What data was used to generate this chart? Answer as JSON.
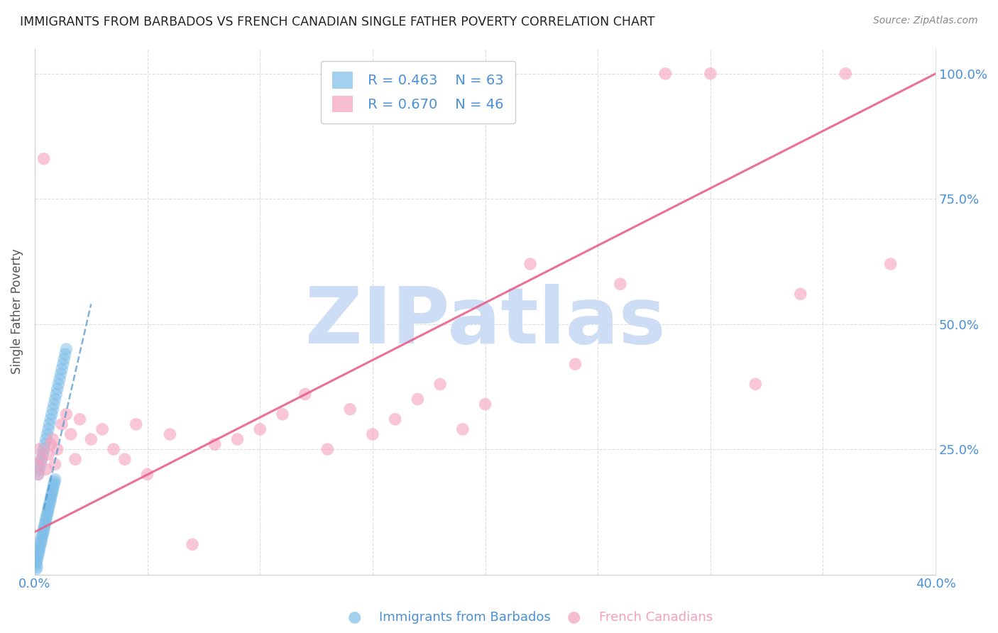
{
  "title": "IMMIGRANTS FROM BARBADOS VS FRENCH CANADIAN SINGLE FATHER POVERTY CORRELATION CHART",
  "source": "Source: ZipAtlas.com",
  "xlabel_label": "Immigrants from Barbados",
  "ylabel_label": "Single Father Poverty",
  "xlabel2_label": "French Canadians",
  "x_min": 0.0,
  "x_max": 0.4,
  "y_min": 0.0,
  "y_max": 1.05,
  "blue_color": "#7bbde8",
  "pink_color": "#f4a0bc",
  "blue_line_color": "#5599cc",
  "pink_line_color": "#e8608a",
  "legend_R1": "R = 0.463",
  "legend_N1": "N = 63",
  "legend_R2": "R = 0.670",
  "legend_N2": "N = 46",
  "watermark": "ZIPatlas",
  "watermark_color": "#ccddf5",
  "title_color": "#222222",
  "tick_color": "#4a90d9",
  "grid_color": "#dddddd",
  "blue_dots_x": [
    0.0005,
    0.0008,
    0.001,
    0.0012,
    0.0015,
    0.0018,
    0.002,
    0.0022,
    0.0025,
    0.0028,
    0.003,
    0.0032,
    0.0035,
    0.0038,
    0.004,
    0.0042,
    0.0045,
    0.0048,
    0.005,
    0.0052,
    0.0055,
    0.0058,
    0.006,
    0.0062,
    0.0065,
    0.0068,
    0.007,
    0.0072,
    0.0075,
    0.0078,
    0.008,
    0.0082,
    0.0085,
    0.0088,
    0.009,
    0.0005,
    0.001,
    0.0015,
    0.002,
    0.0025,
    0.003,
    0.0035,
    0.004,
    0.0045,
    0.005,
    0.0055,
    0.006,
    0.0065,
    0.007,
    0.0075,
    0.008,
    0.0085,
    0.009,
    0.0095,
    0.01,
    0.0105,
    0.011,
    0.0115,
    0.012,
    0.0125,
    0.013,
    0.0135,
    0.014
  ],
  "blue_dots_y": [
    0.02,
    0.025,
    0.03,
    0.035,
    0.04,
    0.045,
    0.05,
    0.055,
    0.06,
    0.065,
    0.07,
    0.075,
    0.08,
    0.085,
    0.09,
    0.095,
    0.1,
    0.105,
    0.11,
    0.115,
    0.12,
    0.125,
    0.13,
    0.135,
    0.14,
    0.145,
    0.15,
    0.155,
    0.16,
    0.165,
    0.17,
    0.175,
    0.18,
    0.185,
    0.19,
    0.01,
    0.015,
    0.2,
    0.21,
    0.22,
    0.23,
    0.24,
    0.25,
    0.26,
    0.27,
    0.28,
    0.29,
    0.3,
    0.31,
    0.32,
    0.33,
    0.34,
    0.35,
    0.36,
    0.37,
    0.38,
    0.39,
    0.4,
    0.41,
    0.42,
    0.43,
    0.44,
    0.45
  ],
  "pink_dots_x": [
    0.001,
    0.0015,
    0.002,
    0.003,
    0.004,
    0.005,
    0.006,
    0.007,
    0.008,
    0.009,
    0.01,
    0.012,
    0.014,
    0.016,
    0.018,
    0.02,
    0.025,
    0.03,
    0.035,
    0.04,
    0.045,
    0.05,
    0.06,
    0.07,
    0.08,
    0.09,
    0.1,
    0.11,
    0.12,
    0.13,
    0.14,
    0.15,
    0.16,
    0.17,
    0.18,
    0.19,
    0.2,
    0.22,
    0.24,
    0.26,
    0.28,
    0.3,
    0.32,
    0.34,
    0.36,
    0.38
  ],
  "pink_dots_y": [
    0.22,
    0.2,
    0.25,
    0.23,
    0.83,
    0.21,
    0.24,
    0.26,
    0.27,
    0.22,
    0.25,
    0.3,
    0.32,
    0.28,
    0.23,
    0.31,
    0.27,
    0.29,
    0.25,
    0.23,
    0.3,
    0.2,
    0.28,
    0.06,
    0.26,
    0.27,
    0.29,
    0.32,
    0.36,
    0.25,
    0.33,
    0.28,
    0.31,
    0.35,
    0.38,
    0.29,
    0.34,
    0.62,
    0.42,
    0.58,
    1.0,
    1.0,
    0.38,
    0.56,
    1.0,
    0.62
  ],
  "blue_trend_x": [
    0.004,
    0.025
  ],
  "blue_trend_y": [
    0.13,
    0.54
  ],
  "pink_trend_x": [
    0.0,
    0.4
  ],
  "pink_trend_y": [
    0.085,
    1.0
  ]
}
